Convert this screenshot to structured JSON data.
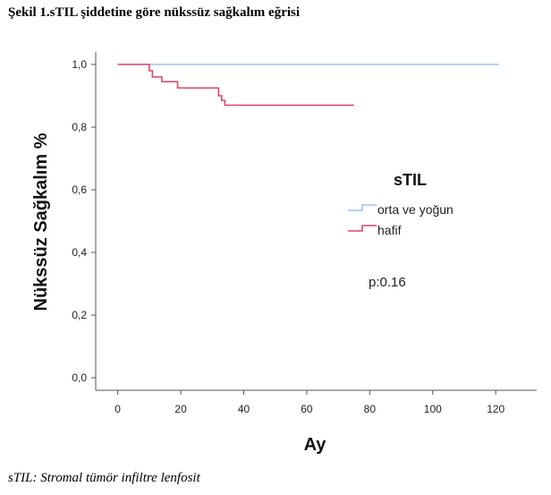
{
  "figure": {
    "title": "Şekil 1.sTIL şiddetine göre nükssüz sağkalım eğrisi",
    "caption": "sTIL: Stromal tümör infiltre lenfosit"
  },
  "chart_data": {
    "type": "line",
    "step": true,
    "xlabel": "Ay",
    "ylabel": "Nükssüz Sağkalım %",
    "xlim": [
      -7,
      133
    ],
    "ylim": [
      -0.04,
      1.04
    ],
    "xticks": [
      "0",
      "20",
      "40",
      "60",
      "80",
      "100",
      "120"
    ],
    "yticks": [
      "0,0",
      "0,2",
      "0,4",
      "0,6",
      "0,8",
      "1,0"
    ],
    "xtick_values": [
      0,
      20,
      40,
      60,
      80,
      100,
      120
    ],
    "ytick_values": [
      0,
      0.2,
      0.4,
      0.6,
      0.8,
      1.0
    ],
    "grid": false,
    "legend": {
      "title": "sTIL",
      "placement": "right"
    },
    "annotation": "p:0.16",
    "series": [
      {
        "name": "orta ve yoğun",
        "color": "#8fb4e8",
        "x": [
          0,
          121
        ],
        "y": [
          1.0,
          1.0
        ]
      },
      {
        "name": "hafif",
        "color": "#e0446a",
        "x": [
          0,
          10,
          11,
          13,
          14,
          19,
          32,
          33,
          34,
          75
        ],
        "y": [
          1.0,
          0.98,
          0.96,
          0.96,
          0.945,
          0.925,
          0.9,
          0.885,
          0.87,
          0.87
        ]
      }
    ]
  }
}
